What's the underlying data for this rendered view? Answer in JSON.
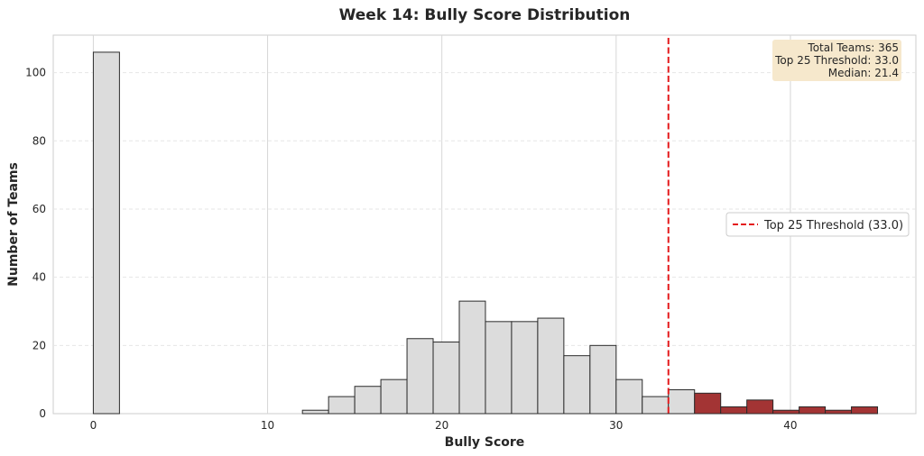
{
  "chart_data": {
    "type": "bar",
    "title": "Week 14: Bully Score Distribution",
    "xlabel": "Bully Score",
    "ylabel": "Number of Teams",
    "xlim": [
      -2.3,
      47.2
    ],
    "ylim": [
      0,
      111
    ],
    "x_ticks": [
      0,
      10,
      20,
      30,
      40
    ],
    "y_ticks": [
      0,
      20,
      40,
      60,
      80,
      100
    ],
    "grid": true,
    "bin_width": 1.5,
    "bins": [
      {
        "start": 0.0,
        "count": 106,
        "top25": false
      },
      {
        "start": 12.0,
        "count": 1,
        "top25": false
      },
      {
        "start": 13.5,
        "count": 5,
        "top25": false
      },
      {
        "start": 15.0,
        "count": 8,
        "top25": false
      },
      {
        "start": 16.5,
        "count": 10,
        "top25": false
      },
      {
        "start": 18.0,
        "count": 22,
        "top25": false
      },
      {
        "start": 19.5,
        "count": 21,
        "top25": false
      },
      {
        "start": 21.0,
        "count": 33,
        "top25": false
      },
      {
        "start": 22.5,
        "count": 27,
        "top25": false
      },
      {
        "start": 24.0,
        "count": 27,
        "top25": false
      },
      {
        "start": 25.5,
        "count": 28,
        "top25": false
      },
      {
        "start": 27.0,
        "count": 17,
        "top25": false
      },
      {
        "start": 28.5,
        "count": 20,
        "top25": false
      },
      {
        "start": 30.0,
        "count": 10,
        "top25": false
      },
      {
        "start": 31.5,
        "count": 5,
        "top25": false
      },
      {
        "start": 33.0,
        "count": 7,
        "top25": false
      },
      {
        "start": 34.5,
        "count": 6,
        "top25": true
      },
      {
        "start": 36.0,
        "count": 2,
        "top25": true
      },
      {
        "start": 37.5,
        "count": 4,
        "top25": true
      },
      {
        "start": 39.0,
        "count": 1,
        "top25": true
      },
      {
        "start": 40.5,
        "count": 2,
        "top25": true
      },
      {
        "start": 42.0,
        "count": 1,
        "top25": true
      },
      {
        "start": 43.5,
        "count": 2,
        "top25": true
      }
    ],
    "threshold": 33.0,
    "legend": {
      "placement": "center-right",
      "entries": [
        "Top 25 Threshold (33.0)"
      ]
    },
    "stats_box": {
      "placement": "top-right",
      "lines": [
        "Total Teams: 365",
        "Top 25 Threshold: 33.0",
        "Median: 21.4"
      ]
    },
    "colors": {
      "default_bar": "#dcdcdc",
      "top25_bar": "#a33434",
      "bar_edge": "#2b2b2b",
      "threshold_line": "#e41a1c",
      "stats_box_bg": "#f6e8cc",
      "grid": "#e6e6e6"
    }
  }
}
